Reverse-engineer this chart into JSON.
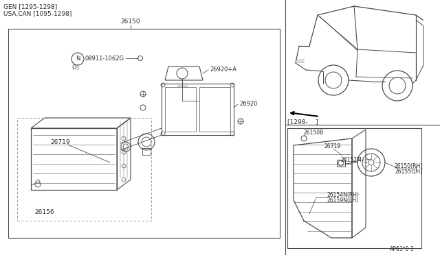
{
  "bg_color": "#ffffff",
  "line_color": "#4a4a4a",
  "text_color": "#2a2a2a",
  "header_lines": [
    "GEN [1295-1298]",
    "USA,CAN [1095-1298]"
  ],
  "label_26150": "26150",
  "label_08911": "08911-1062G",
  "label_3": "(3)",
  "label_26920a": "26920+A",
  "label_26920": "26920",
  "label_26719_left": "26719",
  "label_26156": "26156",
  "label_1298": "[1298-    ]",
  "label_26150b": "26150B",
  "label_26719_right": "26719",
  "label_26152m": "26152M",
  "label_26150rh": "26150(RH)",
  "label_26155lh": "26155(LH)",
  "label_26154n": "26154N(RH)",
  "label_26159n": "26159N(LH)",
  "footer": "AP63*0·3"
}
